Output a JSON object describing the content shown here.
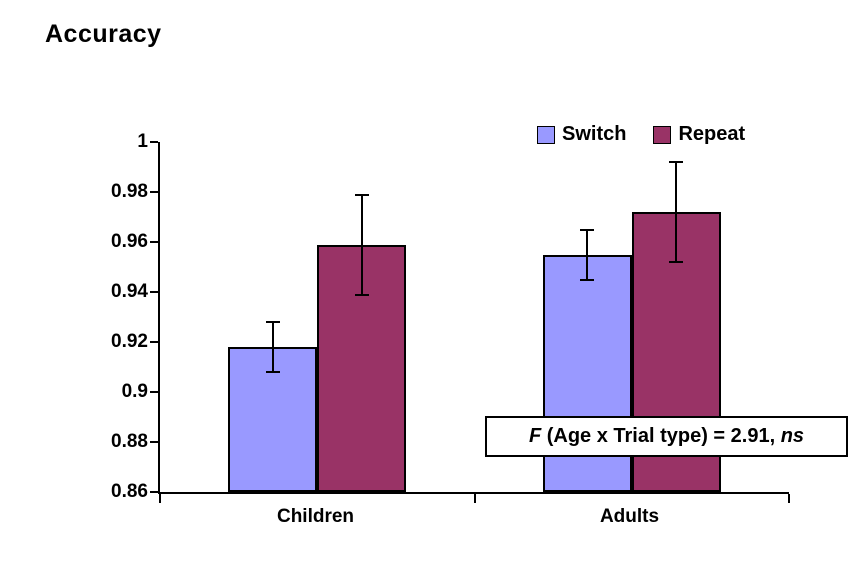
{
  "chart_data": {
    "type": "bar",
    "title": "Accuracy",
    "categories": [
      "Children",
      "Adults"
    ],
    "series": [
      {
        "name": "Switch",
        "color": "#9999FF",
        "values": [
          0.918,
          0.955
        ],
        "error_bars": [
          0.01,
          0.01
        ]
      },
      {
        "name": "Repeat",
        "color": "#993366",
        "values": [
          0.959,
          0.972
        ],
        "error_bars": [
          0.02,
          0.02
        ]
      }
    ],
    "ylim": [
      0.86,
      1.0
    ],
    "y_tick_step": 0.02,
    "y_tick_labels_top_to_bottom": [
      "1",
      "0.98",
      "0.96",
      "0.94",
      "0.92",
      "0.9",
      "0.88",
      "0.86"
    ],
    "grid": false,
    "legend_position": "top-right",
    "legend_entries": [
      "Switch",
      "Repeat"
    ],
    "bar_border_color": "#000000",
    "error_bar_color": "#000000",
    "axis_color": "#000000",
    "background_color": "#FFFFFF",
    "annotation_text": "F (Age x Trial type) = 2.91, ns"
  },
  "annotation": {
    "f": "F",
    "main": " (Age x Trial type) = 2.91, ",
    "ns": "ns"
  }
}
